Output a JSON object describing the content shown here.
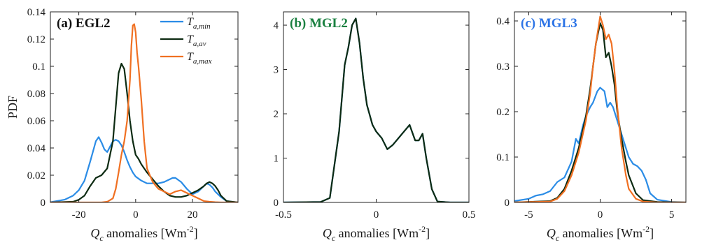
{
  "chart_data": [
    {
      "type": "line",
      "panel_label": "(a) EGL2",
      "panel_label_color": "#111111",
      "ylabel": "PDF",
      "xlabel_main": "Q",
      "xlabel_sub": "c",
      "xlabel_rest": " anomalies [Wm",
      "xlabel_exp": "-2",
      "xlabel_close": "]",
      "xlim": [
        -30,
        36
      ],
      "ylim": [
        0,
        0.14
      ],
      "xticks": [
        -20,
        0,
        20
      ],
      "yticks": [
        0,
        0.02,
        0.04,
        0.06,
        0.08,
        0.1,
        0.12,
        0.14
      ],
      "ytick_labels": [
        "0",
        "0.02",
        "0.04",
        "0.06",
        "0.08",
        "0.1",
        "0.12",
        "0.14"
      ],
      "legend": [
        {
          "main": "T",
          "sub": "a,min",
          "color": "#2b8ce6"
        },
        {
          "main": "T",
          "sub": "a,av",
          "color": "#0d2b12"
        },
        {
          "main": "T",
          "sub": "a,max",
          "color": "#f07022"
        }
      ],
      "series": [
        {
          "name": "Ta,min",
          "color": "#2b8ce6",
          "x": [
            -30,
            -25,
            -22,
            -20,
            -18,
            -16,
            -14,
            -13,
            -12,
            -11,
            -10,
            -9,
            -8,
            -7,
            -6,
            -5,
            -4,
            -3,
            -2,
            -1,
            0,
            2,
            4,
            6,
            8,
            10,
            12,
            13,
            14,
            16,
            18,
            20,
            22,
            24,
            25,
            26,
            27,
            28,
            30,
            32,
            36
          ],
          "y": [
            0.0002,
            0.002,
            0.005,
            0.009,
            0.016,
            0.03,
            0.045,
            0.048,
            0.044,
            0.039,
            0.037,
            0.041,
            0.045,
            0.046,
            0.045,
            0.042,
            0.037,
            0.031,
            0.026,
            0.022,
            0.019,
            0.016,
            0.014,
            0.014,
            0.014,
            0.015,
            0.017,
            0.018,
            0.018,
            0.015,
            0.01,
            0.006,
            0.008,
            0.012,
            0.014,
            0.013,
            0.011,
            0.008,
            0.004,
            0.001,
            0
          ]
        },
        {
          "name": "Ta,av",
          "color": "#0d2b12",
          "x": [
            -30,
            -22,
            -20,
            -18,
            -16,
            -14,
            -12,
            -10,
            -8,
            -7,
            -6,
            -5,
            -4,
            -3,
            -2,
            -1,
            0,
            1,
            2,
            3,
            4,
            6,
            8,
            10,
            12,
            14,
            16,
            18,
            20,
            22,
            24,
            25,
            26,
            27,
            28,
            29,
            30,
            32,
            36
          ],
          "y": [
            0,
            0.0005,
            0.002,
            0.005,
            0.012,
            0.018,
            0.02,
            0.025,
            0.045,
            0.07,
            0.095,
            0.102,
            0.098,
            0.08,
            0.06,
            0.045,
            0.035,
            0.032,
            0.028,
            0.025,
            0.022,
            0.017,
            0.012,
            0.008,
            0.005,
            0.004,
            0.004,
            0.005,
            0.007,
            0.009,
            0.012,
            0.014,
            0.015,
            0.014,
            0.012,
            0.009,
            0.005,
            0.001,
            0
          ]
        },
        {
          "name": "Ta,max",
          "color": "#f07022",
          "x": [
            -30,
            -12,
            -10,
            -8,
            -7,
            -6,
            -5,
            -4,
            -3,
            -2,
            -1.5,
            -1,
            -0.5,
            0,
            0.5,
            1,
            2,
            3,
            4,
            6,
            8,
            10,
            12,
            14,
            16,
            18,
            20,
            22,
            24,
            26,
            28,
            30,
            36
          ],
          "y": [
            0,
            0,
            0.0005,
            0.003,
            0.01,
            0.022,
            0.035,
            0.045,
            0.06,
            0.09,
            0.115,
            0.13,
            0.131,
            0.125,
            0.11,
            0.1,
            0.075,
            0.045,
            0.025,
            0.015,
            0.01,
            0.008,
            0.006,
            0.008,
            0.009,
            0.007,
            0.005,
            0.003,
            0.001,
            0.0005,
            0.0002,
            0,
            0
          ]
        }
      ]
    },
    {
      "type": "line",
      "panel_label": "(b) MGL2",
      "panel_label_color": "#1a8040",
      "ylabel": "",
      "xlabel_main": "Q",
      "xlabel_sub": "c",
      "xlabel_rest": " anomalies [Wm",
      "xlabel_exp": "-2",
      "xlabel_close": "]",
      "xlim": [
        -0.5,
        0.5
      ],
      "ylim": [
        0,
        4.3
      ],
      "xticks": [
        -0.5,
        0,
        0.5
      ],
      "yticks": [
        0,
        1,
        2,
        3,
        4
      ],
      "ytick_labels": [
        "0",
        "1",
        "2",
        "3",
        "4"
      ],
      "legend": [],
      "series": [
        {
          "name": "Ta,min",
          "color": "#2b8ce6",
          "x": [
            -0.5,
            -0.3,
            -0.25,
            -0.2,
            -0.17,
            -0.15,
            -0.13,
            -0.11,
            -0.09,
            -0.07,
            -0.05,
            -0.02,
            0,
            0.03,
            0.06,
            0.09,
            0.12,
            0.15,
            0.18,
            0.21,
            0.23,
            0.25,
            0.27,
            0.3,
            0.33,
            0.4,
            0.5
          ],
          "y": [
            0,
            0.01,
            0.1,
            1.6,
            3.1,
            3.5,
            4.0,
            4.15,
            3.6,
            2.8,
            2.2,
            1.75,
            1.6,
            1.45,
            1.2,
            1.3,
            1.45,
            1.6,
            1.75,
            1.4,
            1.4,
            1.55,
            1.0,
            0.3,
            0.02,
            0,
            0
          ]
        },
        {
          "name": "Ta,av",
          "color": "#0d2b12",
          "x": [
            -0.5,
            -0.3,
            -0.25,
            -0.2,
            -0.17,
            -0.15,
            -0.13,
            -0.11,
            -0.09,
            -0.07,
            -0.05,
            -0.02,
            0,
            0.03,
            0.06,
            0.09,
            0.12,
            0.15,
            0.18,
            0.21,
            0.23,
            0.25,
            0.27,
            0.3,
            0.33,
            0.4,
            0.5
          ],
          "y": [
            0,
            0.01,
            0.1,
            1.6,
            3.1,
            3.5,
            4.0,
            4.15,
            3.6,
            2.8,
            2.2,
            1.75,
            1.6,
            1.45,
            1.2,
            1.3,
            1.45,
            1.6,
            1.75,
            1.4,
            1.4,
            1.55,
            1.0,
            0.3,
            0.02,
            0,
            0
          ]
        }
      ]
    },
    {
      "type": "line",
      "panel_label": "(c) MGL3",
      "panel_label_color": "#2b73e6",
      "ylabel": "",
      "xlabel_main": "Q",
      "xlabel_sub": "c",
      "xlabel_rest": " anomalies [Wm",
      "xlabel_exp": "-2",
      "xlabel_close": "]",
      "xlim": [
        -6,
        6
      ],
      "ylim": [
        0,
        0.42
      ],
      "xticks": [
        -5,
        0,
        5
      ],
      "yticks": [
        0,
        0.1,
        0.2,
        0.3,
        0.4
      ],
      "ytick_labels": [
        "0",
        "0.1",
        "0.2",
        "0.3",
        "0.4"
      ],
      "legend": [],
      "series": [
        {
          "name": "Ta,min",
          "color": "#2b8ce6",
          "x": [
            -6,
            -5,
            -4.5,
            -4,
            -3.5,
            -3,
            -2.5,
            -2,
            -1.7,
            -1.5,
            -1.2,
            -1,
            -0.7,
            -0.5,
            -0.2,
            0,
            0.3,
            0.5,
            0.7,
            0.9,
            1.2,
            1.5,
            1.8,
            2,
            2.3,
            2.6,
            2.9,
            3.2,
            3.5,
            4,
            5,
            6
          ],
          "y": [
            0.003,
            0.008,
            0.015,
            0.018,
            0.025,
            0.045,
            0.055,
            0.09,
            0.14,
            0.13,
            0.17,
            0.19,
            0.21,
            0.22,
            0.245,
            0.253,
            0.245,
            0.21,
            0.22,
            0.21,
            0.18,
            0.15,
            0.12,
            0.1,
            0.085,
            0.08,
            0.07,
            0.05,
            0.02,
            0.006,
            0.001,
            0
          ]
        },
        {
          "name": "Ta,av",
          "color": "#0d2b12",
          "x": [
            -6,
            -3.5,
            -3,
            -2.5,
            -2,
            -1.5,
            -1,
            -0.7,
            -0.5,
            -0.3,
            -0.1,
            0,
            0.2,
            0.4,
            0.6,
            0.8,
            1,
            1.2,
            1.5,
            1.8,
            2,
            2.5,
            3,
            4,
            6
          ],
          "y": [
            0,
            0.003,
            0.01,
            0.03,
            0.07,
            0.12,
            0.19,
            0.25,
            0.3,
            0.35,
            0.38,
            0.395,
            0.38,
            0.32,
            0.33,
            0.3,
            0.26,
            0.2,
            0.14,
            0.09,
            0.06,
            0.02,
            0.005,
            0.001,
            0
          ]
        },
        {
          "name": "Ta,max",
          "color": "#f07022",
          "x": [
            -6,
            -3.5,
            -3,
            -2.5,
            -2,
            -1.5,
            -1,
            -0.7,
            -0.5,
            -0.3,
            -0.1,
            0,
            0.2,
            0.4,
            0.6,
            0.8,
            1,
            1.2,
            1.5,
            1.8,
            2,
            2.5,
            3,
            4,
            6
          ],
          "y": [
            0,
            0.002,
            0.008,
            0.025,
            0.06,
            0.11,
            0.18,
            0.24,
            0.3,
            0.35,
            0.39,
            0.41,
            0.39,
            0.36,
            0.37,
            0.35,
            0.29,
            0.21,
            0.12,
            0.06,
            0.03,
            0.008,
            0.002,
            0,
            0
          ]
        }
      ]
    }
  ]
}
